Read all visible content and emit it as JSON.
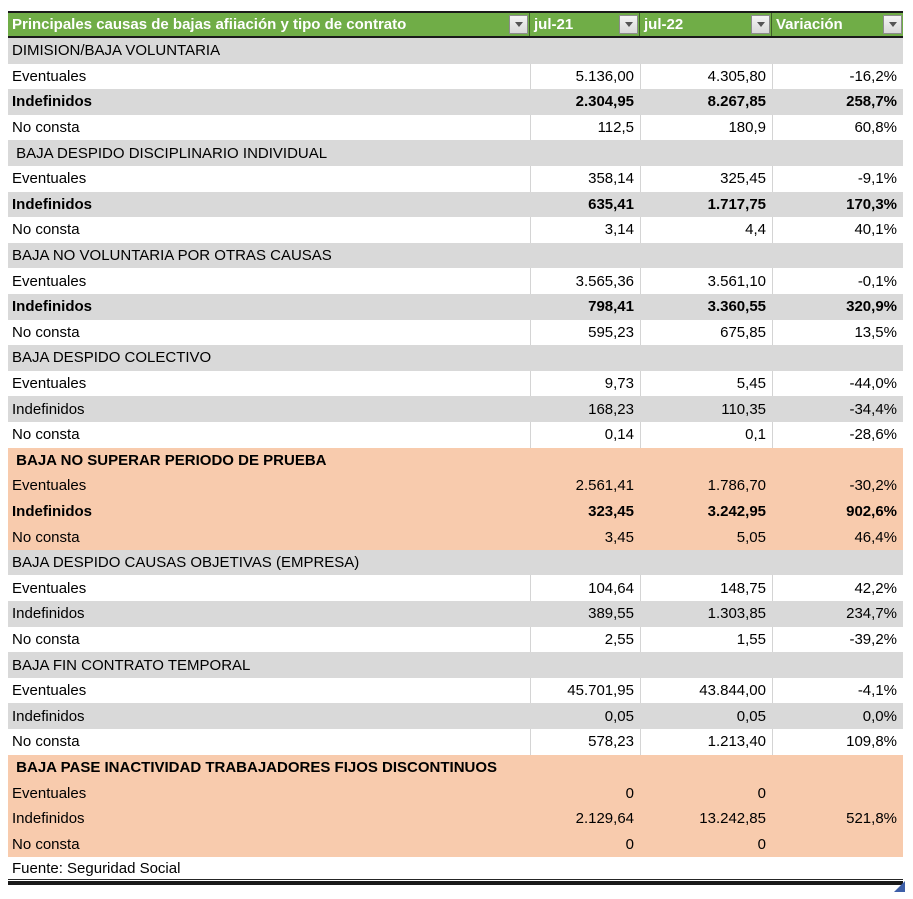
{
  "colors": {
    "header_green": "#70AD47",
    "row_gray": "#D9D9D9",
    "row_orange": "#F8CBAD",
    "header_text": "#FFFFFF",
    "marker_blue": "#3E5FA8"
  },
  "header": {
    "columns": [
      {
        "label": "Principales causas de bajas afiiación y tipo de contrato"
      },
      {
        "label": "jul-21"
      },
      {
        "label": "jul-22"
      },
      {
        "label": "Variación"
      }
    ],
    "filter_icon": "chevron-down-icon"
  },
  "sections": [
    {
      "title": "DIMISION/BAJA VOLUNTARIA",
      "title_bg": "gray",
      "title_bold": false,
      "rows": [
        {
          "label": "Eventuales",
          "jul21": "5.136,00",
          "jul22": "4.305,80",
          "variacion": "-16,2%",
          "bg": "white",
          "bold": false
        },
        {
          "label": "Indefinidos",
          "jul21": "2.304,95",
          "jul22": "8.267,85",
          "variacion": "258,7%",
          "bg": "gray",
          "bold": true
        },
        {
          "label": "No consta",
          "jul21": "112,5",
          "jul22": "180,9",
          "variacion": "60,8%",
          "bg": "white",
          "bold": false
        }
      ]
    },
    {
      "title": " BAJA DESPIDO DISCIPLINARIO INDIVIDUAL",
      "title_bg": "gray",
      "title_bold": false,
      "rows": [
        {
          "label": "Eventuales",
          "jul21": "358,14",
          "jul22": "325,45",
          "variacion": "-9,1%",
          "bg": "white",
          "bold": false
        },
        {
          "label": "Indefinidos",
          "jul21": "635,41",
          "jul22": "1.717,75",
          "variacion": "170,3%",
          "bg": "gray",
          "bold": true
        },
        {
          "label": "No consta",
          "jul21": "3,14",
          "jul22": "4,4",
          "variacion": "40,1%",
          "bg": "white",
          "bold": false
        }
      ]
    },
    {
      "title": "BAJA NO VOLUNTARIA POR OTRAS CAUSAS",
      "title_bg": "gray",
      "title_bold": false,
      "rows": [
        {
          "label": "Eventuales",
          "jul21": "3.565,36",
          "jul22": "3.561,10",
          "variacion": "-0,1%",
          "bg": "white",
          "bold": false
        },
        {
          "label": "Indefinidos",
          "jul21": "798,41",
          "jul22": "3.360,55",
          "variacion": "320,9%",
          "bg": "gray",
          "bold": true
        },
        {
          "label": "No consta",
          "jul21": "595,23",
          "jul22": "675,85",
          "variacion": "13,5%",
          "bg": "white",
          "bold": false
        }
      ]
    },
    {
      "title": "BAJA DESPIDO COLECTIVO",
      "title_bg": "gray",
      "title_bold": false,
      "rows": [
        {
          "label": "Eventuales",
          "jul21": "9,73",
          "jul22": "5,45",
          "variacion": "-44,0%",
          "bg": "white",
          "bold": false
        },
        {
          "label": "Indefinidos",
          "jul21": "168,23",
          "jul22": "110,35",
          "variacion": "-34,4%",
          "bg": "gray",
          "bold": false
        },
        {
          "label": "No consta",
          "jul21": "0,14",
          "jul22": "0,1",
          "variacion": "-28,6%",
          "bg": "white",
          "bold": false
        }
      ]
    },
    {
      "title": " BAJA NO SUPERAR PERIODO DE PRUEBA",
      "title_bg": "orange",
      "title_bold": true,
      "rows": [
        {
          "label": "Eventuales",
          "jul21": "2.561,41",
          "jul22": "1.786,70",
          "variacion": "-30,2%",
          "bg": "orange",
          "bold": false
        },
        {
          "label": "Indefinidos",
          "jul21": "323,45",
          "jul22": "3.242,95",
          "variacion": "902,6%",
          "bg": "orange",
          "bold": true
        },
        {
          "label": "No consta",
          "jul21": "3,45",
          "jul22": "5,05",
          "variacion": "46,4%",
          "bg": "orange",
          "bold": false
        }
      ]
    },
    {
      "title": "BAJA DESPIDO CAUSAS OBJETIVAS (EMPRESA)",
      "title_bg": "gray",
      "title_bold": false,
      "rows": [
        {
          "label": "Eventuales",
          "jul21": "104,64",
          "jul22": "148,75",
          "variacion": "42,2%",
          "bg": "white",
          "bold": false
        },
        {
          "label": "Indefinidos",
          "jul21": "389,55",
          "jul22": "1.303,85",
          "variacion": "234,7%",
          "bg": "gray",
          "bold": false
        },
        {
          "label": "No consta",
          "jul21": "2,55",
          "jul22": "1,55",
          "variacion": "-39,2%",
          "bg": "white",
          "bold": false
        }
      ]
    },
    {
      "title": "BAJA FIN CONTRATO TEMPORAL",
      "title_bg": "gray",
      "title_bold": false,
      "rows": [
        {
          "label": "Eventuales",
          "jul21": "45.701,95",
          "jul22": "43.844,00",
          "variacion": "-4,1%",
          "bg": "white",
          "bold": false
        },
        {
          "label": "Indefinidos",
          "jul21": "0,05",
          "jul22": "0,05",
          "variacion": "0,0%",
          "bg": "gray",
          "bold": false
        },
        {
          "label": "No consta",
          "jul21": "578,23",
          "jul22": "1.213,40",
          "variacion": "109,8%",
          "bg": "white",
          "bold": false
        }
      ]
    },
    {
      "title": " BAJA PASE INACTIVIDAD TRABAJADORES FIJOS DISCONTINUOS",
      "title_bg": "orange",
      "title_bold": true,
      "rows": [
        {
          "label": "Eventuales",
          "jul21": "0",
          "jul22": "0",
          "variacion": "",
          "bg": "orange",
          "bold": false
        },
        {
          "label": "Indefinidos",
          "jul21": "2.129,64",
          "jul22": "13.242,85",
          "variacion": "521,8%",
          "bg": "orange",
          "bold": false
        },
        {
          "label": "No consta",
          "jul21": "0",
          "jul22": "0",
          "variacion": "",
          "bg": "orange",
          "bold": false
        }
      ]
    }
  ],
  "footer": {
    "source": "Fuente: Seguridad Social"
  }
}
